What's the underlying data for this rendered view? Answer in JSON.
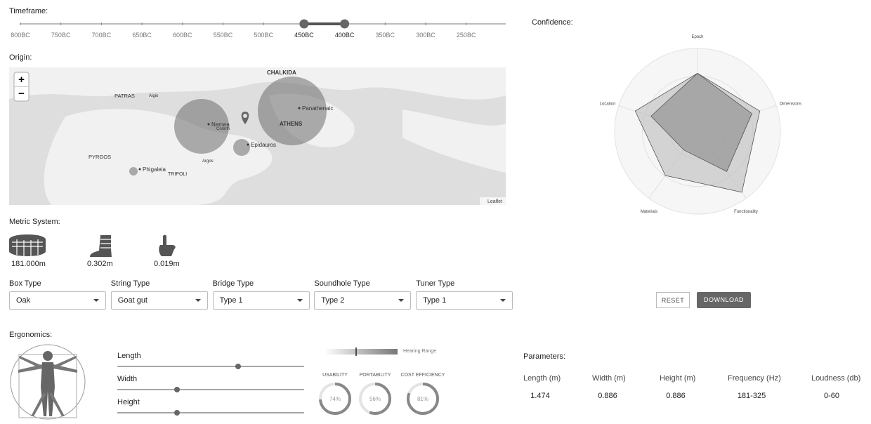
{
  "timeframe": {
    "label": "Timeframe:",
    "ticks": [
      "800BC",
      "750BC",
      "700BC",
      "650BC",
      "600BC",
      "550BC",
      "500BC",
      "450BC",
      "400BC",
      "350BC",
      "300BC",
      "250BC"
    ],
    "selected": [
      "450BC",
      "400BC"
    ]
  },
  "origin": {
    "label": "Origin:",
    "zoom_in": "+",
    "zoom_out": "−",
    "attribution": "Leaflet",
    "places": [
      "CHALKIDA",
      "PATRAS",
      "Aigio",
      "Nemea",
      "Corinth",
      "Panathenaic",
      "ATHENS",
      "Epidauros",
      "PYRGOS",
      "Phigaleia",
      "TRIPOLI",
      "Argos"
    ]
  },
  "confidence": {
    "label": "Confidence:",
    "chart_data": {
      "type": "radar",
      "categories": [
        "Epoch",
        "Dimensions",
        "Functionality",
        "Materials",
        "Location"
      ],
      "rlim": [
        0,
        1
      ],
      "series": [
        {
          "color": "#bdbdbd",
          "values": [
            0.7,
            0.79,
            0.91,
            0.66,
            0.79
          ]
        },
        {
          "color": "#8a8a8a",
          "values": [
            0.7,
            0.69,
            0.6,
            0.28,
            0.59
          ]
        }
      ]
    }
  },
  "metric_system": {
    "label": "Metric System:",
    "values": [
      "181.000m",
      "0.302m",
      "0.019m"
    ]
  },
  "selects": [
    {
      "label": "Box Type",
      "value": "Oak"
    },
    {
      "label": "String Type",
      "value": "Goat gut"
    },
    {
      "label": "Bridge Type",
      "value": "Type 1"
    },
    {
      "label": "Soundhole Type",
      "value": "Type 2"
    },
    {
      "label": "Tuner Type",
      "value": "Type 1"
    }
  ],
  "buttons": {
    "reset": "RESET",
    "download": "DOWNLOAD"
  },
  "ergonomics": {
    "label": "Ergonomics:",
    "sliders": [
      "Length",
      "Width",
      "Height"
    ],
    "hearing_range": "Hearing Range",
    "gauges": [
      {
        "label": "USABILITY",
        "value": 74,
        "value_label": "74%"
      },
      {
        "label": "PORTABILITY",
        "value": 56,
        "value_label": "56%"
      },
      {
        "label": "COST EFFICIENCY",
        "value": 81,
        "value_label": "81%"
      }
    ]
  },
  "parameters": {
    "label": "Parameters:",
    "headers": [
      "Length (m)",
      "Width (m)",
      "Height (m)",
      "Frequency (Hz)",
      "Loudness (db)"
    ],
    "values": [
      1.474,
      0.886,
      0.886,
      "181-325",
      "0-60"
    ]
  }
}
